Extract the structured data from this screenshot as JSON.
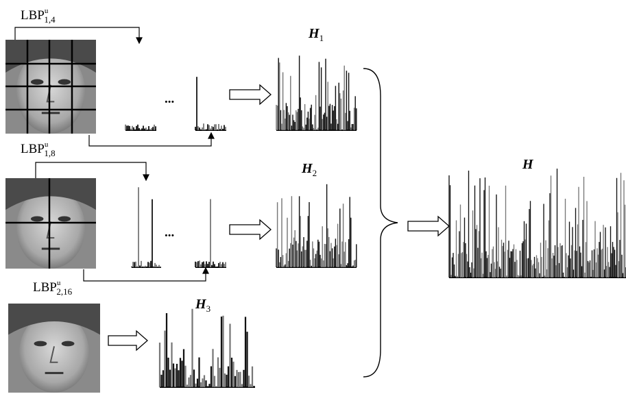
{
  "rows": [
    {
      "label": {
        "base": "LBP",
        "sup": "u",
        "sub": "1,4"
      },
      "ellipsis": "...",
      "histogram": {
        "base": "H",
        "sub": "1"
      }
    },
    {
      "label": {
        "base": "LBP",
        "sup": "u",
        "sub": "1,8"
      },
      "ellipsis": "...",
      "histogram": {
        "base": "H",
        "sub": "2"
      }
    },
    {
      "label": {
        "base": "LBP",
        "sup": "u",
        "sub": "2,16"
      },
      "histogram": {
        "base": "H",
        "sub": "3"
      }
    }
  ],
  "result": {
    "base": "H"
  }
}
